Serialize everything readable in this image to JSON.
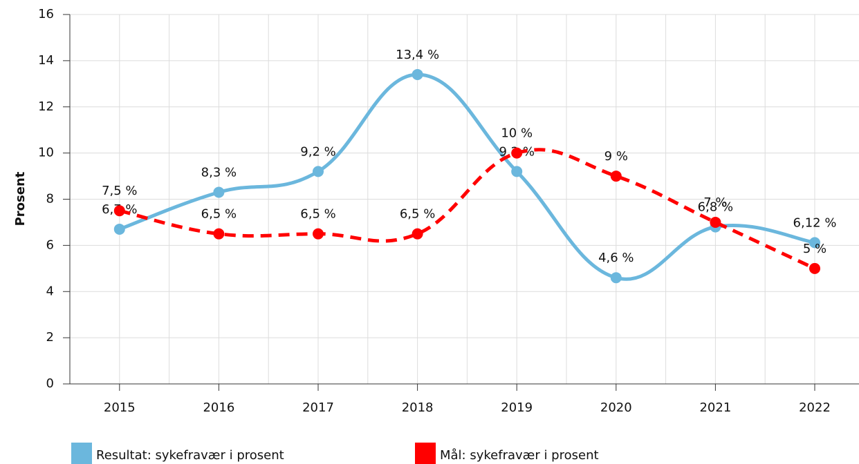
{
  "chart_data": {
    "type": "line",
    "ylabel": "Prosent",
    "categories": [
      "2015",
      "2016",
      "2017",
      "2018",
      "2019",
      "2020",
      "2021",
      "2022"
    ],
    "series": [
      {
        "name": "Resultat: sykefravær i prosent",
        "color": "#6bb7dd",
        "dashed": false,
        "values": [
          6.7,
          8.3,
          9.2,
          13.4,
          9.2,
          4.6,
          6.8,
          6.12
        ],
        "value_labels": [
          "6,7 %",
          "8,3 %",
          "9,2 %",
          "13,4 %",
          "9,2 %",
          "4,6 %",
          "6,8 %",
          "6,12 %"
        ]
      },
      {
        "name": "Mål: sykefravær i prosent",
        "color": "#ff0000",
        "dashed": true,
        "values": [
          7.5,
          6.5,
          6.5,
          6.5,
          10,
          9,
          7,
          5
        ],
        "value_labels": [
          "7,5 %",
          "6,5 %",
          "6,5 %",
          "6,5 %",
          "10 %",
          "9 %",
          "7 %",
          "5 %"
        ]
      }
    ],
    "ylim": [
      0,
      16
    ],
    "yticks": [
      0,
      2,
      4,
      6,
      8,
      10,
      12,
      14,
      16
    ],
    "grid": true
  }
}
